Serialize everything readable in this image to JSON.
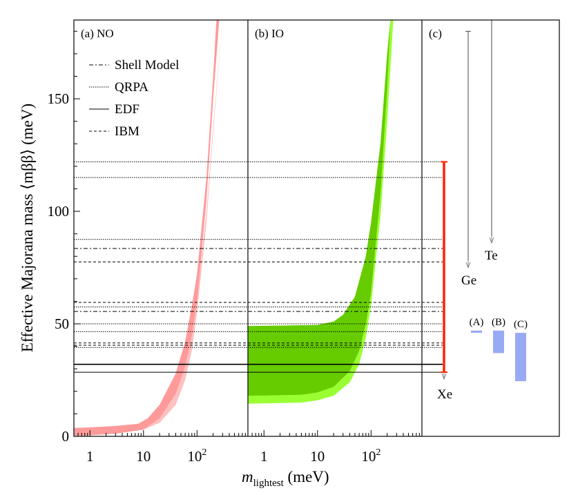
{
  "chart_data": {
    "type": "area",
    "ylabel": "Effective Majorana mass ⟨mββ⟩ (meV)",
    "xlabel_main": "m",
    "xlabel_sub": "lightest",
    "xlabel_unit": " (meV)",
    "ylim": [
      0,
      185
    ],
    "yticks": [
      0,
      50,
      100,
      150
    ],
    "xlim_log10": [
      -0.3,
      2.95
    ],
    "xticks": [
      {
        "value": 1,
        "label": "1",
        "sup": ""
      },
      {
        "value": 10,
        "label": "10",
        "sup": ""
      },
      {
        "value": 100,
        "label": "10",
        "sup": "2"
      }
    ],
    "panels": [
      {
        "label": "(a) NO",
        "bands": [
          {
            "color": "#ffc0c0",
            "lower": [
              [
                0.5,
                0.3
              ],
              [
                1,
                0.5
              ],
              [
                3,
                1.2
              ],
              [
                10,
                3
              ],
              [
                20,
                6
              ],
              [
                40,
                14
              ],
              [
                60,
                25
              ],
              [
                80,
                38
              ],
              [
                100,
                55
              ],
              [
                150,
                95
              ],
              [
                200,
                135
              ],
              [
                300,
                185
              ]
            ],
            "upper": [
              [
                0.5,
                3.7
              ],
              [
                1,
                4
              ],
              [
                3,
                4.6
              ],
              [
                8,
                5.5
              ],
              [
                12,
                7
              ],
              [
                20,
                11
              ],
              [
                40,
                22
              ],
              [
                60,
                34
              ],
              [
                80,
                48
              ],
              [
                100,
                62
              ],
              [
                150,
                100
              ],
              [
                200,
                138
              ],
              [
                300,
                185
              ]
            ]
          },
          {
            "color": "#ff9a9a",
            "lower": [
              [
                0.5,
                0.3
              ],
              [
                1,
                0.5
              ],
              [
                3,
                1.2
              ],
              [
                10,
                3
              ],
              [
                20,
                8
              ],
              [
                40,
                19
              ],
              [
                60,
                31
              ],
              [
                80,
                45
              ],
              [
                100,
                60
              ],
              [
                150,
                105
              ],
              [
                200,
                150
              ],
              [
                260,
                185
              ]
            ],
            "upper": [
              [
                0.5,
                3.7
              ],
              [
                1,
                4
              ],
              [
                3,
                4.6
              ],
              [
                8,
                5.6
              ],
              [
                12,
                8
              ],
              [
                20,
                14
              ],
              [
                40,
                28
              ],
              [
                60,
                42
              ],
              [
                80,
                58
              ],
              [
                100,
                72
              ],
              [
                150,
                115
              ],
              [
                200,
                160
              ],
              [
                230,
                185
              ]
            ]
          }
        ]
      },
      {
        "label": "(b) IO",
        "bands": [
          {
            "color": "#99ff33",
            "lower": [
              [
                0.5,
                14.5
              ],
              [
                5,
                15
              ],
              [
                10,
                16
              ],
              [
                20,
                18
              ],
              [
                40,
                24
              ],
              [
                60,
                32
              ],
              [
                80,
                44
              ],
              [
                100,
                58
              ],
              [
                150,
                98
              ],
              [
                200,
                140
              ],
              [
                260,
                185
              ]
            ],
            "upper": [
              [
                0.5,
                49
              ],
              [
                10,
                49.5
              ],
              [
                20,
                51
              ],
              [
                30,
                54
              ],
              [
                50,
                62
              ],
              [
                80,
                80
              ],
              [
                100,
                95
              ],
              [
                150,
                130
              ],
              [
                200,
                170
              ],
              [
                230,
                185
              ]
            ]
          },
          {
            "color": "#66cc00",
            "lower": [
              [
                0.5,
                18
              ],
              [
                5,
                18.5
              ],
              [
                10,
                19.5
              ],
              [
                20,
                22
              ],
              [
                40,
                29
              ],
              [
                60,
                38
              ],
              [
                80,
                50
              ],
              [
                100,
                64
              ],
              [
                150,
                108
              ],
              [
                200,
                155
              ],
              [
                230,
                185
              ]
            ],
            "upper": [
              [
                0.5,
                49
              ],
              [
                10,
                49.5
              ],
              [
                20,
                51
              ],
              [
                30,
                54
              ],
              [
                50,
                62
              ],
              [
                80,
                80
              ],
              [
                100,
                95
              ],
              [
                150,
                130
              ],
              [
                200,
                170
              ],
              [
                230,
                185
              ]
            ]
          }
        ]
      }
    ],
    "nme_lines": {
      "legend": [
        {
          "label": "Shell Model",
          "dash": "6,3,2,3"
        },
        {
          "label": "QRPA",
          "dash": "1.5,1.5"
        },
        {
          "label": "EDF",
          "dash": ""
        },
        {
          "label": "IBM",
          "dash": "4,3"
        }
      ],
      "lines": [
        {
          "y": 122,
          "dash": "1.5,1.5"
        },
        {
          "y": 115,
          "dash": "1.5,1.5"
        },
        {
          "y": 87.5,
          "dash": "1.5,1.5"
        },
        {
          "y": 83.5,
          "dash": "6,3,2,3"
        },
        {
          "y": 77.5,
          "dash": "4,3"
        },
        {
          "y": 59.5,
          "dash": "4,3"
        },
        {
          "y": 57.5,
          "dash": "1.5,1.5"
        },
        {
          "y": 55.5,
          "dash": "6,3,2,3"
        },
        {
          "y": 50,
          "dash": "1.5,1.5"
        },
        {
          "y": 46.5,
          "dash": "1.5,1.5"
        },
        {
          "y": 41.5,
          "dash": "4,3"
        },
        {
          "y": 40.5,
          "dash": "4,3"
        },
        {
          "y": 39.5,
          "dash": "1.5,1.5"
        },
        {
          "y": 32,
          "dash": "",
          "width": 1.6
        },
        {
          "y": 28.5,
          "dash": "",
          "width": 1
        }
      ]
    },
    "panel_c": {
      "label": "(c)",
      "limits": [
        {
          "name": "Xe",
          "top": 122,
          "bottom": 28.5,
          "color": "#ff2200",
          "marker": true
        },
        {
          "name": "Ge",
          "top": 180,
          "bottom": 78,
          "color": "#444444",
          "marker": false
        },
        {
          "name": "Te",
          "top": 185,
          "bottom": 89,
          "color": "#444444",
          "marker": false
        }
      ],
      "projections": [
        {
          "name": "(A)",
          "top": 47,
          "bottom": 46
        },
        {
          "name": "(B)",
          "top": 47,
          "bottom": 37
        },
        {
          "name": "(C)",
          "top": 46,
          "bottom": 24.5
        }
      ],
      "projection_color": "#99aaf5"
    }
  }
}
